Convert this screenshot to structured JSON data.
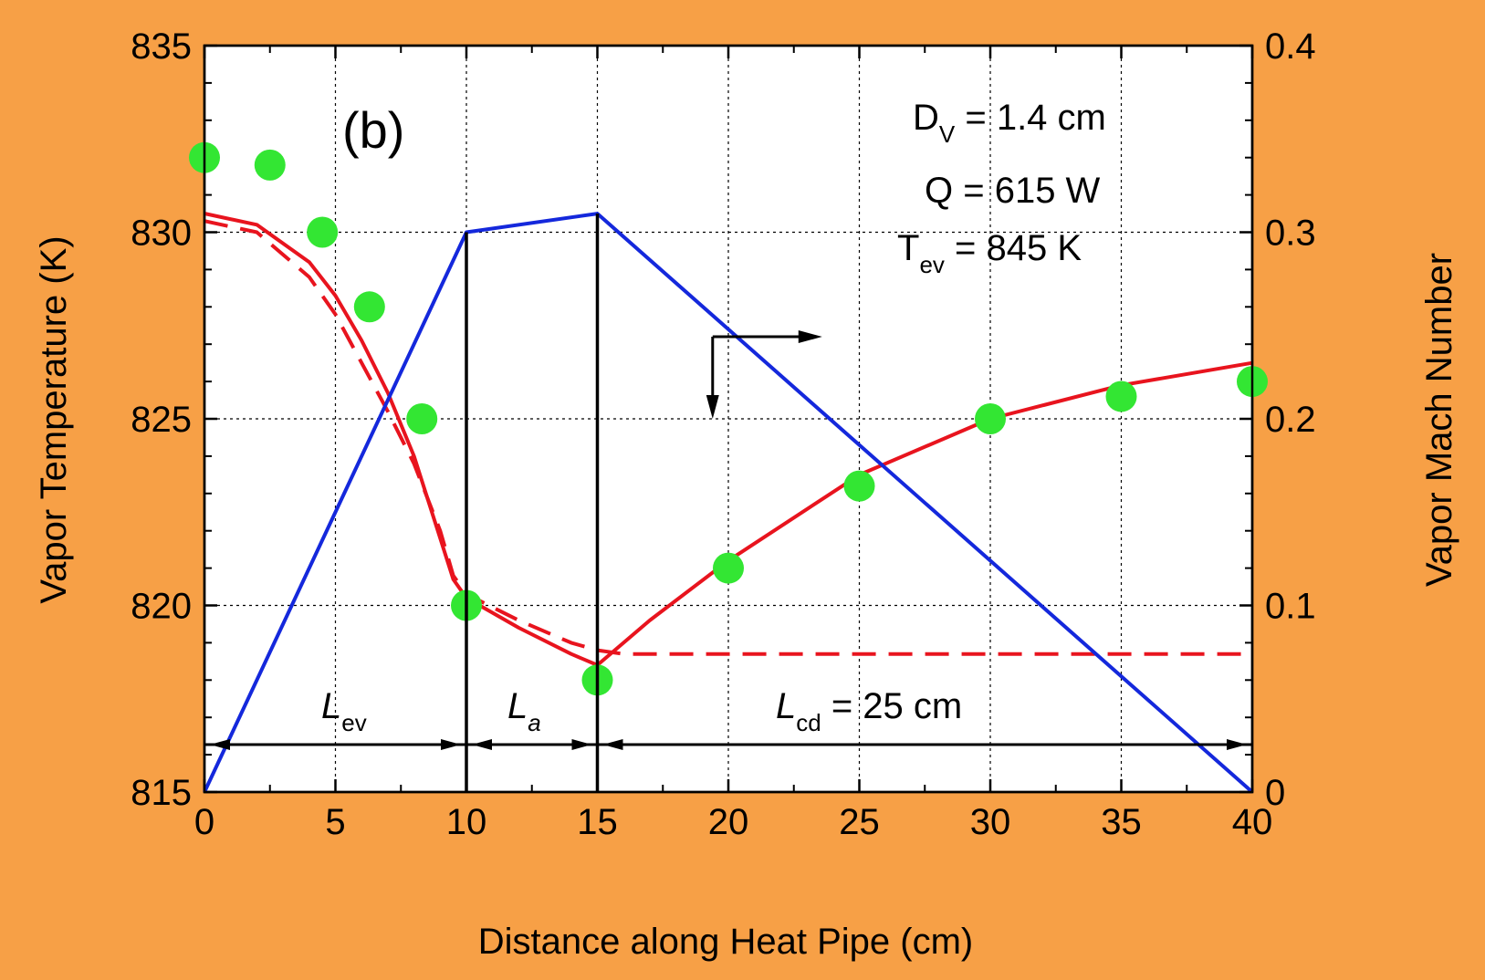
{
  "colors": {
    "background": "#f7a046",
    "plot_area": "#ffffff",
    "temperature_line": "#e8141e",
    "mach_line": "#1428dc",
    "data_points": "#33e633",
    "grid": "#000000"
  },
  "chart_data": {
    "type": "line",
    "panel_label": "(b)",
    "xlabel": "Distance along Heat Pipe (cm)",
    "ylabel": "Vapor Temperature (K)",
    "ylabel_right": "Vapor Mach Number",
    "xlim": [
      0,
      40
    ],
    "ylim": [
      815,
      835
    ],
    "ylim_right": [
      0,
      0.4
    ],
    "grid": true,
    "x_ticks": [
      "0",
      "5",
      "10",
      "15",
      "20",
      "25",
      "30",
      "35",
      "40"
    ],
    "y_ticks": [
      "815",
      "820",
      "825",
      "830",
      "835"
    ],
    "y_ticks_right": [
      "0",
      "0.1",
      "0.2",
      "0.3",
      "0.4"
    ],
    "annotations": {
      "dv": {
        "symbol": "D",
        "sub": "V",
        "rest": " = 1.4 cm"
      },
      "q": "Q = 615 W",
      "tev": {
        "symbol": "T",
        "sub": "ev",
        "rest": " = 845 K"
      },
      "lev": {
        "symbol": "L",
        "sub": "ev"
      },
      "la": {
        "symbol": "L",
        "sub": "a"
      },
      "lcd": {
        "symbol": "L",
        "sub": "cd",
        "rest": " = 25 cm"
      }
    },
    "section_boundaries_cm": [
      0,
      10,
      15,
      40
    ],
    "series": [
      {
        "axis": "left",
        "style": "solid",
        "x": [
          0,
          2,
          4,
          5,
          6,
          7,
          8,
          9,
          9.5,
          10,
          12,
          14,
          15,
          17,
          20,
          25,
          30,
          35,
          40
        ],
        "values": [
          830.5,
          830.2,
          829.2,
          828.3,
          827.1,
          825.7,
          824.0,
          821.8,
          820.7,
          820.2,
          819.4,
          818.7,
          818.4,
          819.6,
          821.2,
          823.5,
          825.0,
          825.9,
          826.5
        ]
      },
      {
        "axis": "left",
        "style": "dashed",
        "x": [
          0,
          2,
          4,
          5,
          6,
          7,
          8,
          9,
          9.5,
          10,
          12,
          14,
          15,
          16,
          20,
          25,
          30,
          35,
          40
        ],
        "values": [
          830.3,
          830.0,
          828.8,
          827.8,
          826.5,
          825.2,
          823.8,
          822.0,
          820.8,
          820.3,
          819.6,
          819.0,
          818.8,
          818.7,
          818.7,
          818.7,
          818.7,
          818.7,
          818.7
        ]
      },
      {
        "axis": "right",
        "style": "solid",
        "x": [
          0,
          10,
          15,
          40
        ],
        "values": [
          0,
          0.3,
          0.31,
          0
        ]
      },
      {
        "axis": "left",
        "style": "markers",
        "x": [
          0,
          2.5,
          4.5,
          6.3,
          8.3,
          10,
          15,
          20,
          25,
          30,
          35,
          40
        ],
        "values": [
          832,
          831.8,
          830,
          828,
          825,
          820,
          818,
          821,
          823.2,
          825,
          825.6,
          826
        ]
      }
    ]
  }
}
